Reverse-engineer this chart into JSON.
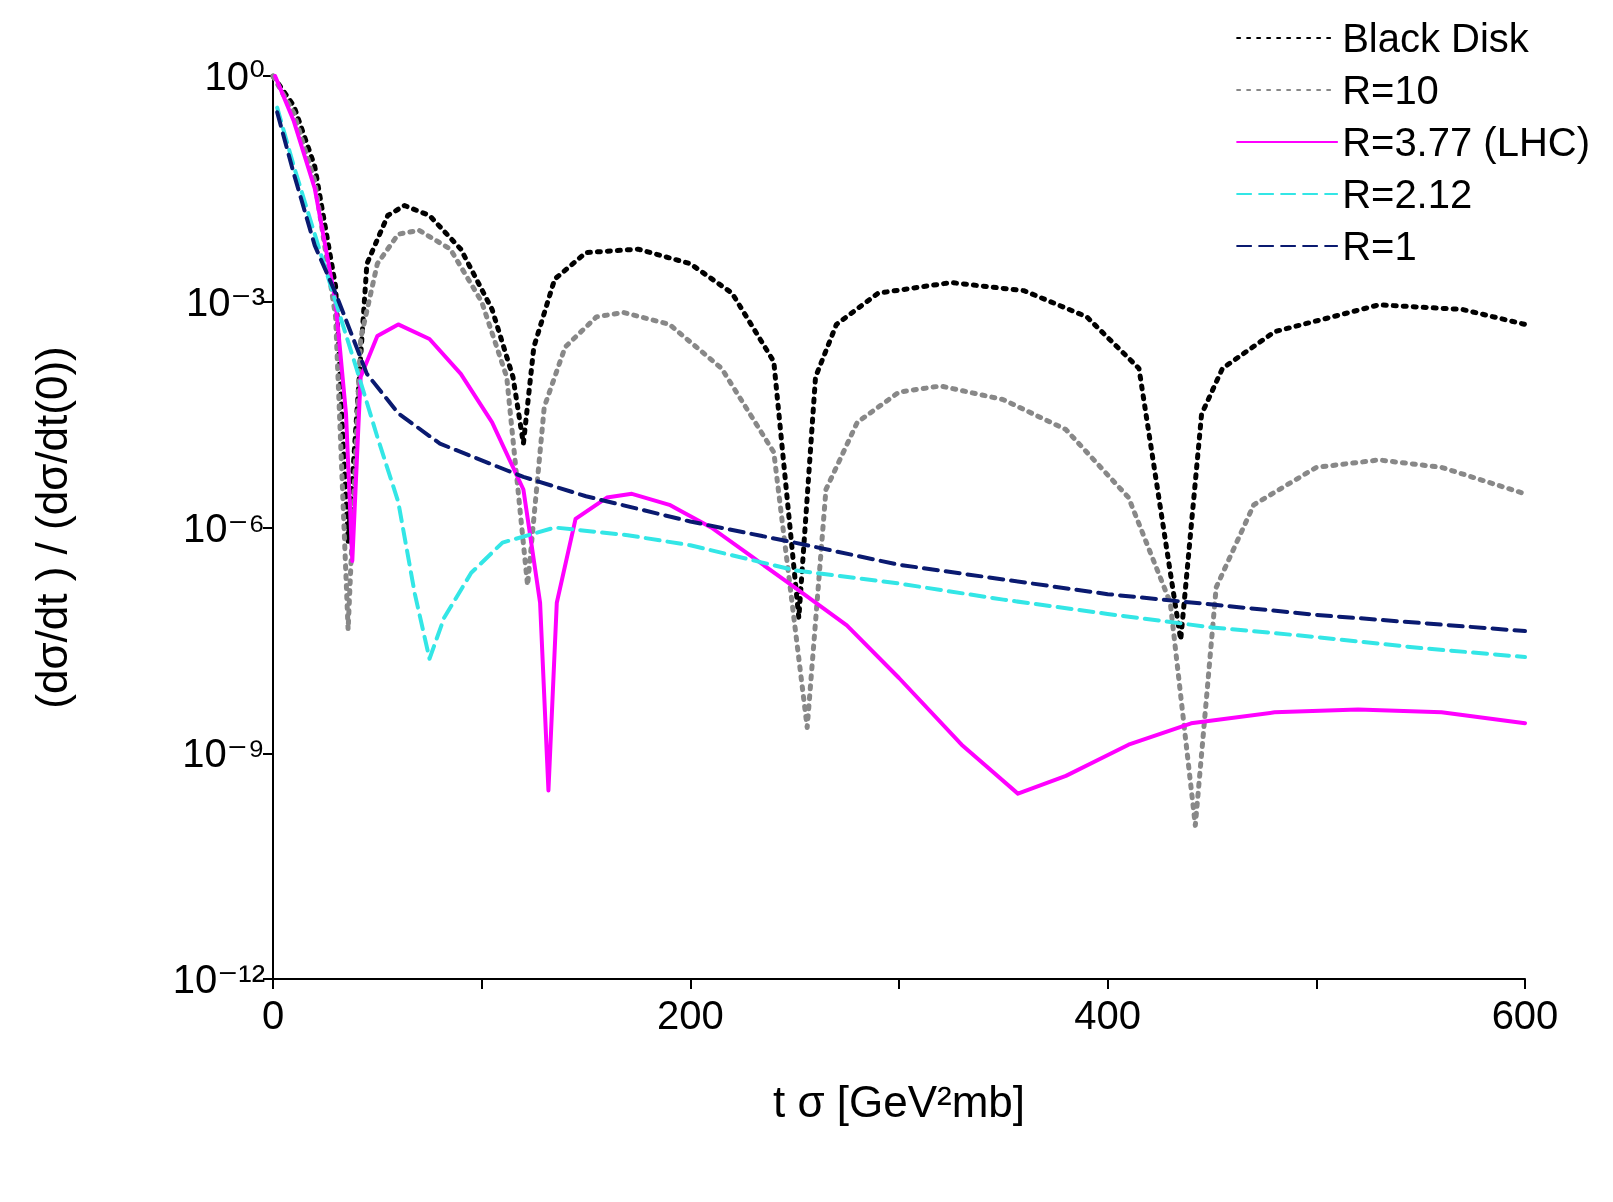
{
  "chart_data": {
    "type": "line",
    "xlabel": "t σ [GeV²mb]",
    "ylabel": "(dσ/dt ) / (dσ/dt(0))",
    "log": "y",
    "grid": false,
    "legend": "top right",
    "marker": "none",
    "xlim": [
      0,
      600
    ],
    "xticks": [
      0,
      {
        "value": 100,
        "label": null
      },
      200,
      {
        "value": 300,
        "label": null
      },
      400,
      {
        "value": 500,
        "label": null
      },
      600
    ],
    "ylim": [
      1e-12,
      1
    ],
    "yticks": [
      {
        "value": 1e-12,
        "label": "10⁻¹²"
      },
      {
        "value": 1e-09,
        "label": "10⁻⁹"
      },
      {
        "value": 1e-06,
        "label": "10⁻⁶"
      },
      {
        "value": 0.001,
        "label": "10⁻³"
      },
      {
        "value": 1,
        "label": "10⁰"
      }
    ],
    "series": [
      {
        "name": "Black Disk",
        "color": "#000000",
        "line_style": "dotted",
        "x": [
          0,
          10,
          20,
          30,
          36,
          45,
          55,
          63,
          75,
          90,
          105,
          115,
          120,
          125,
          135,
          150,
          175,
          200,
          220,
          240,
          252,
          260,
          270,
          290,
          325,
          360,
          390,
          415,
          435,
          445,
          455,
          480,
          530,
          570,
          600
        ],
        "values": [
          1,
          0.4,
          0.063,
          0.0016,
          6.3e-07,
          0.0032,
          0.014,
          0.019,
          0.014,
          0.005,
          0.00079,
          0.0001,
          1.3e-05,
          0.00025,
          0.002,
          0.0045,
          0.005,
          0.0032,
          0.0013,
          0.00016,
          6.3e-08,
          0.0001,
          0.0005,
          0.0013,
          0.0018,
          0.0014,
          0.00063,
          0.00013,
          3.2e-08,
          3.2e-05,
          0.00013,
          0.0004,
          0.00091,
          0.00079,
          0.0005
        ]
      },
      {
        "name": "R=10",
        "color": "#888888",
        "line_style": "dotted",
        "x": [
          0,
          10,
          20,
          30,
          36,
          42,
          50,
          60,
          70,
          85,
          100,
          112,
          122,
          130,
          140,
          155,
          168,
          190,
          215,
          240,
          256,
          265,
          280,
          300,
          320,
          350,
          380,
          410,
          430,
          442,
          452,
          470,
          500,
          530,
          560,
          600
        ],
        "values": [
          1,
          0.32,
          0.04,
          0.00063,
          4.4e-08,
          0.00032,
          0.0032,
          0.0079,
          0.0089,
          0.005,
          0.001,
          0.0001,
          1.7e-07,
          4e-05,
          0.00025,
          0.00063,
          0.00072,
          0.0005,
          0.00013,
          1e-05,
          2.2e-09,
          3.2e-06,
          2.5e-05,
          6.3e-05,
          7.6e-05,
          5e-05,
          2e-05,
          2.5e-06,
          1e-07,
          1.1e-10,
          1.6e-07,
          2e-06,
          6.3e-06,
          7.9e-06,
          6.3e-06,
          2.8e-06
        ]
      },
      {
        "name": "R=3.77 (LHC)",
        "color": "#ff00ff",
        "line_style": "solid",
        "x": [
          1,
          10,
          20,
          30,
          35,
          38,
          42,
          50,
          60,
          75,
          90,
          105,
          120,
          128,
          132,
          136,
          145,
          160,
          172,
          190,
          210,
          230,
          250,
          275,
          300,
          330,
          357,
          380,
          410,
          440,
          480,
          520,
          560,
          600
        ],
        "values": [
          1,
          0.25,
          0.032,
          0.001,
          3.2e-05,
          3.6e-07,
          0.0001,
          0.00035,
          0.0005,
          0.00032,
          0.00011,
          2.5e-05,
          3.2e-06,
          1e-07,
          3.2e-10,
          1e-07,
          1.3e-06,
          2.5e-06,
          2.8e-06,
          2e-06,
          1e-06,
          4e-07,
          1.6e-07,
          5e-08,
          1e-08,
          1.3e-09,
          2.9e-10,
          5e-10,
          1.3e-09,
          2.5e-09,
          3.5e-09,
          3.8e-09,
          3.5e-09,
          2.5e-09
        ]
      },
      {
        "name": "R=2.12",
        "color": "#33e6e6",
        "line_style": "dashed",
        "x": [
          2,
          10,
          20,
          30,
          40,
          50,
          60,
          68,
          75,
          82,
          95,
          110,
          135,
          170,
          200,
          250,
          300,
          350,
          400,
          450,
          500,
          550,
          600
        ],
        "values": [
          0.38,
          0.063,
          0.0079,
          0.001,
          0.00013,
          1.6e-05,
          2.2e-06,
          1.3e-07,
          1.8e-08,
          6.3e-08,
          2.5e-07,
          6.3e-07,
          1e-06,
          7.9e-07,
          5.8e-07,
          2.7e-07,
          1.8e-07,
          1.1e-07,
          7.1e-08,
          4.7e-08,
          3.5e-08,
          2.5e-08,
          1.9e-08
        ]
      },
      {
        "name": "R=1",
        "color": "#0a1a70",
        "line_style": "dashed",
        "x": [
          2,
          10,
          20,
          30,
          45,
          60,
          80,
          120,
          150,
          200,
          250,
          300,
          400,
          500,
          600
        ],
        "values": [
          0.33,
          0.05,
          0.0056,
          0.0013,
          0.00011,
          3.3e-05,
          1.3e-05,
          4.7e-06,
          2.6e-06,
          1.2e-06,
          6.3e-07,
          3.2e-07,
          1.3e-07,
          6.9e-08,
          4.2e-08
        ]
      }
    ]
  }
}
